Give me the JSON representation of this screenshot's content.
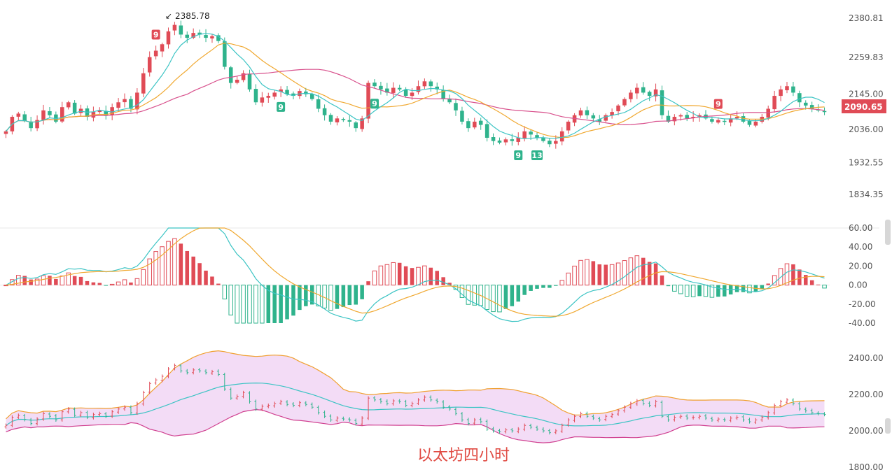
{
  "caption": "以太坊四小时",
  "colors": {
    "up": "#e04b56",
    "down": "#2fb38c",
    "ma_fast": "#3cc4c4",
    "ma_mid": "#f0a830",
    "ma_slow": "#d8508c",
    "band_fill": "#f3dcf6",
    "band_upper": "#f0a030",
    "band_lower": "#d04090",
    "band_mid": "#3cc4c4",
    "grid": "#e8e8e8"
  },
  "chart_data": [
    {
      "type": "candlestick",
      "panel": "price",
      "y_ticks": [
        "2380.81",
        "2259.83",
        "2145.00",
        "2036.00",
        "1932.55",
        "1834.35"
      ],
      "y_tick_values": [
        2380.81,
        2259.83,
        2145.0,
        2036.0,
        1932.55,
        1834.35
      ],
      "last_price_label": "2090.65",
      "last_price": 2090.65,
      "high_label": "2385.78",
      "high_value": 2385.78,
      "close_series": [
        2030,
        2075,
        2085,
        2062,
        2040,
        2065,
        2095,
        2080,
        2060,
        2105,
        2120,
        2085,
        2100,
        2075,
        2090,
        2095,
        2080,
        2105,
        2120,
        2130,
        2100,
        2150,
        2210,
        2260,
        2280,
        2300,
        2340,
        2360,
        2330,
        2320,
        2335,
        2330,
        2320,
        2325,
        2310,
        2230,
        2180,
        2190,
        2210,
        2160,
        2120,
        2135,
        2140,
        2150,
        2160,
        2145,
        2140,
        2155,
        2145,
        2130,
        2100,
        2080,
        2060,
        2070,
        2065,
        2060,
        2040,
        2070,
        2180,
        2170,
        2160,
        2150,
        2165,
        2160,
        2140,
        2150,
        2170,
        2185,
        2170,
        2160,
        2130,
        2120,
        2095,
        2060,
        2040,
        2060,
        2050,
        2010,
        2000,
        1995,
        2005,
        2000,
        2010,
        2030,
        2020,
        2010,
        2000,
        1990,
        2000,
        2030,
        2060,
        2080,
        2095,
        2080,
        2070,
        2060,
        2080,
        2090,
        2110,
        2130,
        2150,
        2165,
        2150,
        2140,
        2160,
        2080,
        2060,
        2075,
        2080,
        2070,
        2075,
        2080,
        2070,
        2060,
        2065,
        2060,
        2070,
        2075,
        2060,
        2050,
        2060,
        2075,
        2100,
        2140,
        2160,
        2170,
        2150,
        2120,
        2110,
        2100,
        2095,
        2090
      ],
      "badges": [
        {
          "label": "9",
          "index": 24,
          "side": "top",
          "tone": "up"
        },
        {
          "label": "9",
          "index": 44,
          "side": "bottom",
          "tone": "down"
        },
        {
          "label": "9",
          "index": 59,
          "side": "bottom",
          "tone": "down"
        },
        {
          "label": "9",
          "index": 82,
          "side": "bottom",
          "tone": "down"
        },
        {
          "label": "13",
          "index": 85,
          "side": "bottom",
          "tone": "down"
        },
        {
          "label": "9",
          "index": 114,
          "side": "top",
          "tone": "up"
        }
      ]
    },
    {
      "type": "histogram",
      "panel": "macd",
      "y_ticks": [
        "60.00",
        "40.00",
        "20.00",
        "0.00",
        "-20.00",
        "-40.00"
      ],
      "y_tick_values": [
        60,
        40,
        20,
        0,
        -20,
        -40
      ]
    },
    {
      "type": "band",
      "panel": "bollinger",
      "y_ticks": [
        "2400.00",
        "2200.00",
        "2000.00",
        "1800.00"
      ],
      "y_tick_values": [
        2400,
        2200,
        2000,
        1800
      ]
    }
  ]
}
